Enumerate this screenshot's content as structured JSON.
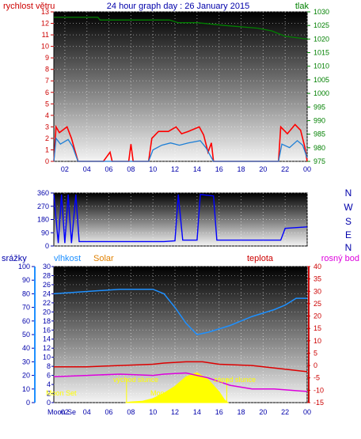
{
  "header": {
    "title": "24 hour graph day : 26 January 2015",
    "left_label": "rychlost větru",
    "right_label": "tlak"
  },
  "mid_panel": {
    "directions": [
      "N",
      "W",
      "S",
      "E",
      "N"
    ]
  },
  "bottom_panel": {
    "labels": {
      "srazky": "srážky",
      "vlhkost": "vlhkost",
      "solar": "Solar",
      "teplota": "teplota",
      "rosny_bod": "rosný bod"
    },
    "annotations": {
      "moon_set": "Moon Set",
      "sunrise": "východ slunce",
      "moon": "Moo",
      "sunset": "západ slunce"
    },
    "x_first_label": "Moon Se"
  },
  "colors": {
    "wind_gust": "#ff0000",
    "wind_avg": "#1e7fd6",
    "pressure": "#008000",
    "direction": "#0000ff",
    "humidity": "#1e90ff",
    "temperature": "#dd0000",
    "dewpoint": "#dd00dd",
    "solar": "#ffff00",
    "axis_left_bottom": "#0000ff",
    "axis_right_bottom": "#cc0000",
    "axis_humidity": "#1e90ff"
  },
  "chart_data": [
    {
      "type": "line",
      "name": "wind-pressure",
      "x_ticks": [
        "02",
        "04",
        "06",
        "08",
        "10",
        "12",
        "14",
        "16",
        "18",
        "20",
        "22",
        "00"
      ],
      "y_left": {
        "ticks": [
          "0",
          "1",
          "2",
          "3",
          "4",
          "5",
          "6",
          "7",
          "8",
          "9",
          "10",
          "11",
          "12",
          "13"
        ],
        "range": [
          0,
          13
        ]
      },
      "y_right": {
        "ticks": [
          "975",
          "980",
          "985",
          "990",
          "995",
          "1000",
          "1005",
          "1010",
          "1015",
          "1020",
          "1025",
          "1030"
        ],
        "range": [
          975,
          1030
        ]
      },
      "series": [
        {
          "axis": "left",
          "values": [
            [
              1,
              0
            ],
            [
              1.2,
              3
            ],
            [
              1.5,
              2.5
            ],
            [
              2.2,
              3
            ],
            [
              2.6,
              2
            ],
            [
              2.9,
              1
            ],
            [
              3.2,
              0
            ],
            [
              5.5,
              0
            ],
            [
              6.1,
              0.8
            ],
            [
              6.3,
              0
            ],
            [
              7.8,
              0
            ],
            [
              8.0,
              1.5
            ],
            [
              8.2,
              0
            ],
            [
              9.6,
              0
            ],
            [
              9.9,
              2
            ],
            [
              10.5,
              2.6
            ],
            [
              11.4,
              2.6
            ],
            [
              12.1,
              3
            ],
            [
              12.6,
              2.4
            ],
            [
              13.2,
              2.6
            ],
            [
              14.2,
              3
            ],
            [
              14.6,
              2.3
            ],
            [
              15.0,
              0.8
            ],
            [
              15.3,
              1.6
            ],
            [
              15.5,
              0
            ],
            [
              21.4,
              0
            ],
            [
              21.6,
              3
            ],
            [
              22.2,
              2.4
            ],
            [
              22.9,
              3.2
            ],
            [
              23.4,
              2.7
            ],
            [
              23.8,
              1.2
            ],
            [
              24,
              0
            ]
          ]
        },
        {
          "axis": "left",
          "values": [
            [
              1,
              0
            ],
            [
              1.2,
              2
            ],
            [
              1.6,
              1.5
            ],
            [
              2.3,
              1.9
            ],
            [
              2.7,
              1.3
            ],
            [
              3.0,
              0.5
            ],
            [
              3.2,
              0
            ],
            [
              9.6,
              0
            ],
            [
              10,
              1
            ],
            [
              10.8,
              1.4
            ],
            [
              11.6,
              1.6
            ],
            [
              12.4,
              1.4
            ],
            [
              13.2,
              1.6
            ],
            [
              14.3,
              1.8
            ],
            [
              14.8,
              1.2
            ],
            [
              15.2,
              0.5
            ],
            [
              15.5,
              0
            ],
            [
              21.4,
              0
            ],
            [
              21.7,
              1.5
            ],
            [
              22.4,
              1.2
            ],
            [
              23.1,
              1.8
            ],
            [
              23.6,
              1.4
            ],
            [
              24,
              0.3
            ]
          ]
        },
        {
          "axis": "right",
          "values": [
            [
              1,
              1028
            ],
            [
              5.0,
              1028
            ],
            [
              5.2,
              1027
            ],
            [
              8.5,
              1027
            ],
            [
              11.5,
              1027
            ],
            [
              12.3,
              1026
            ],
            [
              14.0,
              1026
            ],
            [
              16.5,
              1025
            ],
            [
              19.5,
              1024
            ],
            [
              20.8,
              1023
            ],
            [
              22,
              1021
            ],
            [
              24,
              1020
            ]
          ]
        }
      ]
    },
    {
      "type": "line",
      "name": "wind-direction",
      "y_ticks": [
        "0",
        "90",
        "180",
        "270",
        "360"
      ],
      "y_range": [
        0,
        360
      ],
      "series": [
        {
          "values": [
            [
              1,
              350
            ],
            [
              1.4,
              20
            ],
            [
              1.7,
              350
            ],
            [
              2.0,
              20
            ],
            [
              2.3,
              350
            ],
            [
              2.6,
              20
            ],
            [
              3.0,
              350
            ],
            [
              3.3,
              30
            ],
            [
              5.0,
              30
            ],
            [
              8.0,
              30
            ],
            [
              11.0,
              30
            ],
            [
              12.0,
              35
            ],
            [
              12.3,
              350
            ],
            [
              12.7,
              40
            ],
            [
              14.0,
              40
            ],
            [
              14.3,
              350
            ],
            [
              15.5,
              340
            ],
            [
              15.8,
              40
            ],
            [
              16.2,
              40
            ],
            [
              21.6,
              40
            ],
            [
              22.0,
              120
            ],
            [
              24,
              130
            ]
          ]
        }
      ]
    },
    {
      "type": "line",
      "name": "temperature-humidity",
      "y_left_outer": {
        "ticks": [
          "0",
          "10",
          "20",
          "30",
          "40",
          "50",
          "60",
          "70",
          "80",
          "90",
          "100"
        ],
        "range": [
          0,
          100
        ]
      },
      "y_left_inner": {
        "ticks": [
          "0",
          "2",
          "4",
          "6",
          "8",
          "10",
          "12",
          "14",
          "16",
          "18",
          "20",
          "22",
          "24",
          "26",
          "28",
          "30"
        ],
        "range": [
          0,
          30
        ]
      },
      "y_right": {
        "ticks": [
          "-15",
          "-10",
          "-5",
          "0",
          "5",
          "10",
          "15",
          "20",
          "25",
          "30",
          "35",
          "40"
        ],
        "range": [
          -15,
          40
        ]
      },
      "series": [
        {
          "axis": "left_inner",
          "values": [
            [
              1,
              24
            ],
            [
              4,
              24.5
            ],
            [
              7,
              25
            ],
            [
              10,
              25
            ],
            [
              11,
              24
            ],
            [
              12,
              21
            ],
            [
              13,
              17.5
            ],
            [
              14,
              15
            ],
            [
              15,
              15.5
            ],
            [
              17,
              17
            ],
            [
              19,
              19
            ],
            [
              21,
              20.5
            ],
            [
              22,
              21.5
            ],
            [
              23,
              23
            ],
            [
              24,
              23
            ]
          ]
        },
        {
          "axis": "right",
          "values": [
            [
              1,
              -0.5
            ],
            [
              4,
              -0.5
            ],
            [
              7,
              0
            ],
            [
              10,
              0.5
            ],
            [
              11,
              1
            ],
            [
              13,
              1.5
            ],
            [
              14.5,
              1.5
            ],
            [
              16,
              0.5
            ],
            [
              19,
              0
            ],
            [
              22,
              -1.5
            ],
            [
              24,
              -2.5
            ]
          ]
        },
        {
          "axis": "right",
          "values": [
            [
              1,
              -4.5
            ],
            [
              4,
              -4
            ],
            [
              7,
              -3.5
            ],
            [
              10,
              -4
            ],
            [
              11,
              -3.5
            ],
            [
              13,
              -3
            ],
            [
              15,
              -5
            ],
            [
              17,
              -8
            ],
            [
              19,
              -9.5
            ],
            [
              21,
              -9.5
            ],
            [
              24,
              -10.5
            ]
          ]
        },
        {
          "axis": "left_outer",
          "values": [
            [
              7.5,
              0
            ],
            [
              8,
              0.5
            ],
            [
              9,
              1
            ],
            [
              10,
              3
            ],
            [
              11,
              7
            ],
            [
              12,
              12
            ],
            [
              13,
              19
            ],
            [
              14,
              22
            ],
            [
              15,
              17
            ],
            [
              16,
              8
            ],
            [
              16.5,
              2
            ],
            [
              16.8,
              0
            ]
          ]
        }
      ]
    }
  ]
}
